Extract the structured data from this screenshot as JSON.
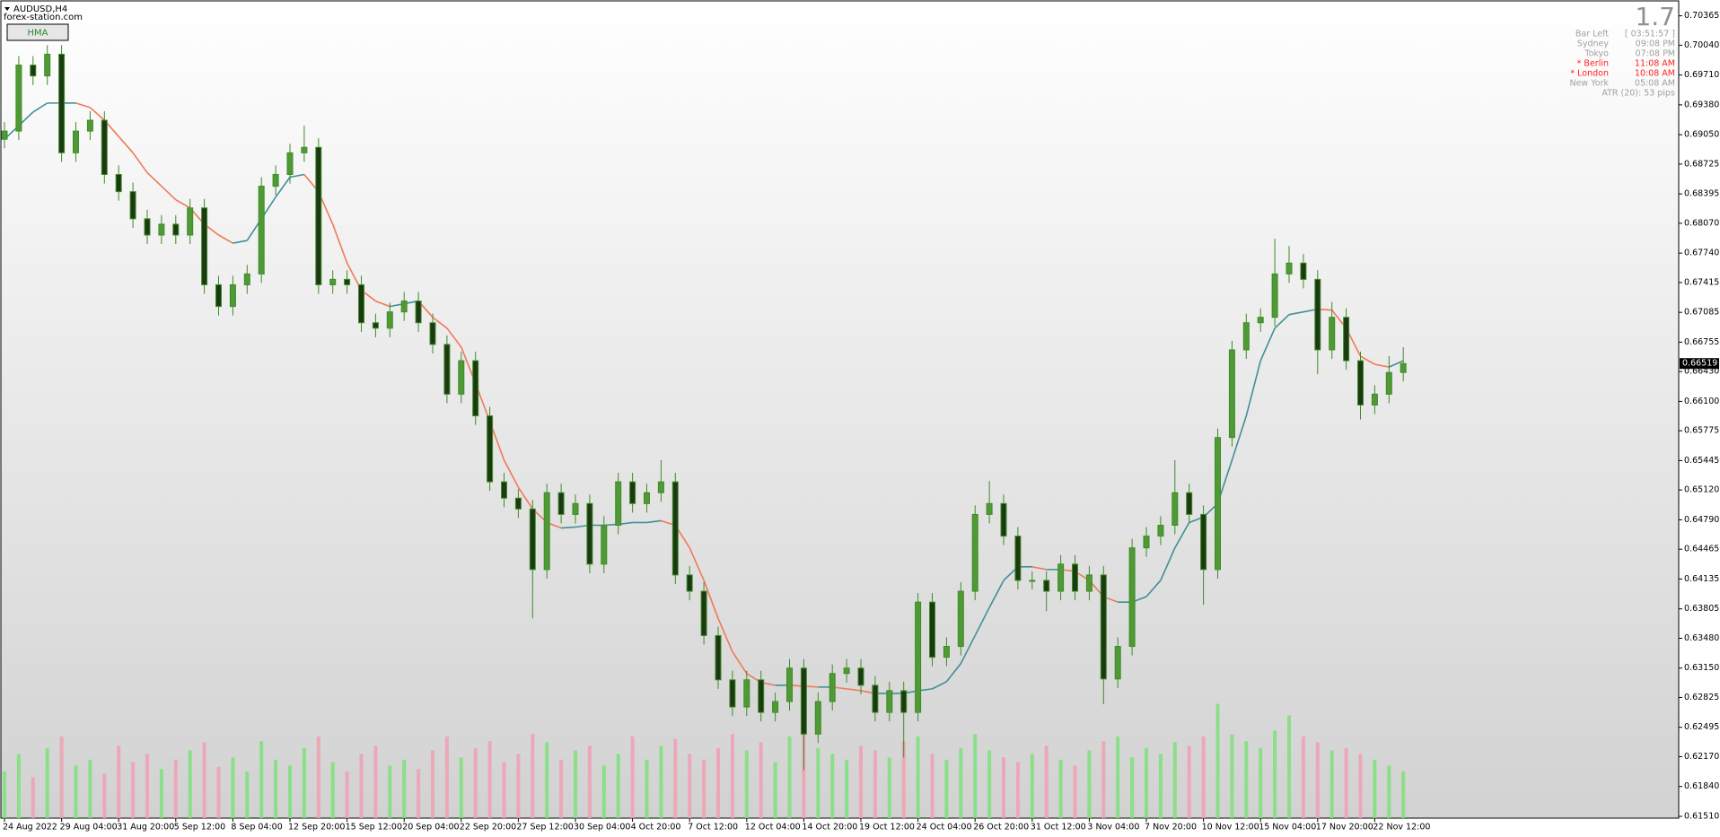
{
  "header": {
    "symbol": "AUDUSD,H4",
    "site": "forex-station.com",
    "button": "HMA"
  },
  "info": {
    "big": "1.7",
    "rows": [
      {
        "label": "Bar Left",
        "value": "[ 03:51:57 ]",
        "color": "#a0a0a0"
      },
      {
        "label": "Sydney",
        "value": "09:08 PM",
        "color": "#a0a0a0"
      },
      {
        "label": "Tokyo",
        "value": "07:08 PM",
        "color": "#a0a0a0"
      },
      {
        "label": "* Berlin",
        "value": "11:08 AM",
        "color": "#ff2020"
      },
      {
        "label": "* London",
        "value": "10:08 AM",
        "color": "#ff2020"
      },
      {
        "label": "New York",
        "value": "05:08 AM",
        "color": "#a0a0a0"
      }
    ],
    "atr": "ATR (20): 53 pips"
  },
  "chart_data": {
    "type": "candlestick",
    "categories": [
      "24 Aug 2022",
      null,
      null,
      null,
      "29 Aug 04:00",
      null,
      null,
      null,
      "31 Aug 20:00",
      null,
      null,
      null,
      "5 Sep 12:00",
      null,
      null,
      null,
      "8 Sep 04:00",
      null,
      null,
      null,
      "12 Sep 20:00",
      null,
      null,
      null,
      "15 Sep 12:00",
      null,
      null,
      null,
      "20 Sep 04:00",
      null,
      null,
      null,
      "22 Sep 20:00",
      null,
      null,
      null,
      "27 Sep 12:00",
      null,
      null,
      null,
      "30 Sep 04:00",
      null,
      null,
      null,
      "4 Oct 20:00",
      null,
      null,
      null,
      "7 Oct 12:00",
      null,
      null,
      null,
      "12 Oct 04:00",
      null,
      null,
      null,
      "14 Oct 20:00",
      null,
      null,
      null,
      "19 Oct 12:00",
      null,
      null,
      null,
      "24 Oct 04:00",
      null,
      null,
      null,
      "26 Oct 20:00",
      null,
      null,
      null,
      "31 Oct 12:00",
      null,
      null,
      null,
      "3 Nov 04:00",
      null,
      null,
      null,
      "7 Nov 20:00",
      null,
      null,
      null,
      "10 Nov 12:00",
      null,
      null,
      null,
      "15 Nov 04:00",
      null,
      null,
      null,
      "17 Nov 20:00",
      null,
      null,
      null,
      "22 Nov 12:00",
      null,
      null
    ],
    "open": [
      0.69,
      0.6909,
      0.6982,
      0.697,
      0.6994,
      0.6885,
      0.6909,
      0.6921,
      0.6861,
      0.6842,
      0.6812,
      0.6794,
      0.6806,
      0.6794,
      0.6824,
      0.6739,
      0.6715,
      0.6739,
      0.6751,
      0.6848,
      0.6861,
      0.6885,
      0.6891,
      0.6739,
      0.6745,
      0.6739,
      0.6697,
      0.6691,
      0.6709,
      0.6721,
      0.6697,
      0.6673,
      0.6618,
      0.6655,
      0.6594,
      0.6521,
      0.6503,
      0.6491,
      0.6424,
      0.6509,
      0.6485,
      0.6497,
      0.643,
      0.6473,
      0.6521,
      0.6497,
      0.6509,
      0.6521,
      0.6418,
      0.64,
      0.6351,
      0.6302,
      0.6272,
      0.6302,
      0.6266,
      0.6278,
      0.6315,
      0.6242,
      0.6278,
      0.6309,
      0.6315,
      0.6296,
      0.6266,
      0.629,
      0.6266,
      0.6388,
      0.6327,
      0.6339,
      0.64,
      0.6485,
      0.6497,
      0.6461,
      0.6412,
      0.6412,
      0.64,
      0.643,
      0.64,
      0.6418,
      0.6303,
      0.6339,
      0.6448,
      0.6461,
      0.6473,
      0.6509,
      0.6485,
      0.6424,
      0.657,
      0.6667,
      0.6697,
      0.6703,
      0.6751,
      0.6763,
      0.6745,
      0.6667,
      0.6703,
      0.6655,
      0.6606,
      0.6618,
      0.6642
    ],
    "high": [
      0.6919,
      0.6992,
      0.6992,
      0.7004,
      0.7004,
      0.6919,
      0.6931,
      0.6931,
      0.6871,
      0.6852,
      0.6822,
      0.6816,
      0.6816,
      0.6834,
      0.6834,
      0.6749,
      0.6749,
      0.6761,
      0.6858,
      0.6871,
      0.6895,
      0.6915,
      0.6901,
      0.6755,
      0.6755,
      0.6749,
      0.6707,
      0.6719,
      0.6731,
      0.6731,
      0.6707,
      0.6683,
      0.6665,
      0.6665,
      0.6604,
      0.6531,
      0.6513,
      0.6501,
      0.6519,
      0.6519,
      0.6507,
      0.6507,
      0.6483,
      0.6531,
      0.6531,
      0.6519,
      0.6545,
      0.6531,
      0.6428,
      0.641,
      0.6361,
      0.6312,
      0.6312,
      0.6312,
      0.6288,
      0.6325,
      0.6325,
      0.6288,
      0.6319,
      0.6325,
      0.6325,
      0.6306,
      0.63,
      0.63,
      0.6398,
      0.6398,
      0.6349,
      0.641,
      0.6495,
      0.6522,
      0.6507,
      0.6471,
      0.6422,
      0.6422,
      0.644,
      0.644,
      0.6428,
      0.6428,
      0.6349,
      0.6458,
      0.6471,
      0.6483,
      0.6545,
      0.6519,
      0.6495,
      0.658,
      0.6677,
      0.6707,
      0.6713,
      0.679,
      0.6782,
      0.6773,
      0.6755,
      0.672,
      0.6713,
      0.6665,
      0.6628,
      0.666,
      0.667
    ],
    "low": [
      0.689,
      0.6899,
      0.696,
      0.696,
      0.6875,
      0.6875,
      0.6899,
      0.6851,
      0.6832,
      0.6802,
      0.6784,
      0.6784,
      0.6784,
      0.6784,
      0.6729,
      0.6705,
      0.6705,
      0.6729,
      0.6741,
      0.6838,
      0.6851,
      0.6875,
      0.6729,
      0.6729,
      0.6729,
      0.6687,
      0.6681,
      0.6681,
      0.6699,
      0.6687,
      0.6663,
      0.6608,
      0.6608,
      0.6584,
      0.6511,
      0.6493,
      0.6481,
      0.637,
      0.6414,
      0.6475,
      0.6475,
      0.642,
      0.642,
      0.6463,
      0.6487,
      0.6487,
      0.6499,
      0.6408,
      0.639,
      0.6341,
      0.6292,
      0.6262,
      0.6262,
      0.6256,
      0.6256,
      0.6268,
      0.6202,
      0.6232,
      0.6268,
      0.6299,
      0.6286,
      0.6256,
      0.6256,
      0.6216,
      0.6256,
      0.6317,
      0.6317,
      0.6329,
      0.639,
      0.6475,
      0.6451,
      0.6402,
      0.6402,
      0.6378,
      0.639,
      0.639,
      0.639,
      0.6275,
      0.6293,
      0.6329,
      0.6438,
      0.6451,
      0.6463,
      0.6475,
      0.6385,
      0.6414,
      0.656,
      0.6657,
      0.6687,
      0.6693,
      0.6741,
      0.6735,
      0.664,
      0.6657,
      0.6645,
      0.659,
      0.6596,
      0.6608,
      0.6632
    ],
    "close": [
      0.6909,
      0.6982,
      0.697,
      0.6994,
      0.6885,
      0.6909,
      0.6921,
      0.6861,
      0.6842,
      0.6812,
      0.6794,
      0.6806,
      0.6794,
      0.6824,
      0.6739,
      0.6715,
      0.6739,
      0.6751,
      0.6848,
      0.6861,
      0.6885,
      0.6891,
      0.6739,
      0.6745,
      0.6739,
      0.6697,
      0.6691,
      0.6709,
      0.6721,
      0.6697,
      0.6673,
      0.6618,
      0.6655,
      0.6594,
      0.6521,
      0.6503,
      0.6491,
      0.6424,
      0.6509,
      0.6485,
      0.6497,
      0.643,
      0.6473,
      0.6521,
      0.6497,
      0.6509,
      0.6521,
      0.6418,
      0.64,
      0.6351,
      0.6302,
      0.6272,
      0.6302,
      0.6266,
      0.6278,
      0.6315,
      0.6242,
      0.6278,
      0.6309,
      0.6315,
      0.6296,
      0.6266,
      0.629,
      0.6266,
      0.6388,
      0.6327,
      0.6339,
      0.64,
      0.6485,
      0.6497,
      0.6461,
      0.6412,
      0.6412,
      0.64,
      0.643,
      0.64,
      0.6418,
      0.6303,
      0.6339,
      0.6448,
      0.6461,
      0.6473,
      0.6509,
      0.6485,
      0.6424,
      0.657,
      0.6667,
      0.6697,
      0.6703,
      0.6751,
      0.6763,
      0.6745,
      0.6667,
      0.6703,
      0.6655,
      0.6606,
      0.6618,
      0.6642,
      0.66519
    ],
    "volume": [
      40,
      55,
      35,
      60,
      70,
      45,
      50,
      38,
      62,
      48,
      55,
      42,
      50,
      58,
      65,
      44,
      52,
      40,
      66,
      50,
      45,
      60,
      70,
      48,
      40,
      55,
      62,
      45,
      50,
      42,
      58,
      70,
      52,
      60,
      66,
      48,
      55,
      72,
      65,
      50,
      58,
      62,
      45,
      55,
      70,
      50,
      62,
      68,
      55,
      50,
      60,
      72,
      58,
      65,
      48,
      70,
      75,
      60,
      55,
      50,
      62,
      58,
      52,
      66,
      70,
      55,
      50,
      60,
      72,
      58,
      52,
      48,
      55,
      62,
      50,
      45,
      58,
      66,
      70,
      52,
      60,
      55,
      65,
      62,
      70,
      98,
      72,
      66,
      60,
      75,
      88,
      70,
      65,
      58,
      60,
      55,
      50,
      45,
      40
    ],
    "hma": {
      "name": "HMA",
      "up_color": "#3f8f96",
      "down_color": "#f07a55",
      "values": [
        0.69,
        0.6915,
        0.693,
        0.694,
        0.694,
        0.694,
        0.6935,
        0.6921,
        0.6903,
        0.6885,
        0.6863,
        0.6848,
        0.6833,
        0.6824,
        0.6806,
        0.6794,
        0.6785,
        0.6788,
        0.6812,
        0.6836,
        0.6858,
        0.6861,
        0.6842,
        0.6806,
        0.6763,
        0.6733,
        0.6721,
        0.6715,
        0.6718,
        0.6721,
        0.6703,
        0.6691,
        0.667,
        0.663,
        0.6588,
        0.6545,
        0.6515,
        0.6491,
        0.6476,
        0.647,
        0.6471,
        0.6473,
        0.6473,
        0.6474,
        0.6476,
        0.6476,
        0.6478,
        0.6473,
        0.6448,
        0.6412,
        0.637,
        0.6333,
        0.6309,
        0.6299,
        0.6296,
        0.6296,
        0.6295,
        0.6294,
        0.6294,
        0.6292,
        0.629,
        0.6287,
        0.6287,
        0.6287,
        0.629,
        0.6292,
        0.63,
        0.632,
        0.6351,
        0.6382,
        0.6412,
        0.6427,
        0.6427,
        0.6424,
        0.6424,
        0.6422,
        0.6412,
        0.6394,
        0.6388,
        0.6388,
        0.6394,
        0.6412,
        0.6448,
        0.6476,
        0.6482,
        0.6497,
        0.6545,
        0.6594,
        0.6655,
        0.6691,
        0.6706,
        0.6709,
        0.6712,
        0.6711,
        0.6691,
        0.666,
        0.6651,
        0.6648,
        0.6655
      ]
    },
    "up_color": "#7ee07a",
    "down_color": "#f0a0b4",
    "ylim": [
      0.6149,
      0.7053
    ],
    "y2lim": [
      0,
      700
    ],
    "yticks": [
      0.70365,
      {
        "value": 0.7004,
        "label": "0.70040"
      },
      {
        "value": 0.6971,
        "label": "0.69710"
      },
      {
        "value": 0.6938,
        "label": "0.69380"
      },
      {
        "value": 0.6905,
        "label": "0.69050"
      },
      0.68725,
      0.68395,
      {
        "value": 0.6807,
        "label": "0.68070"
      },
      {
        "value": 0.6774,
        "label": "0.67740"
      },
      0.67415,
      0.67085,
      0.66755,
      {
        "value": 0.6643,
        "label": "0.66430"
      },
      {
        "value": 0.661,
        "label": "0.66100"
      },
      0.65775,
      0.65445,
      {
        "value": 0.6512,
        "label": "0.65120"
      },
      {
        "value": 0.6479,
        "label": "0.64790"
      },
      0.64465,
      0.64135,
      0.63805,
      {
        "value": 0.6348,
        "label": "0.63480"
      },
      {
        "value": 0.6315,
        "label": "0.63150"
      },
      0.62825,
      0.62495,
      {
        "value": 0.6217,
        "label": "0.62170"
      },
      {
        "value": 0.6184,
        "label": "0.61840"
      },
      {
        "value": 0.6151,
        "label": "0.61510"
      }
    ],
    "grid": false
  }
}
